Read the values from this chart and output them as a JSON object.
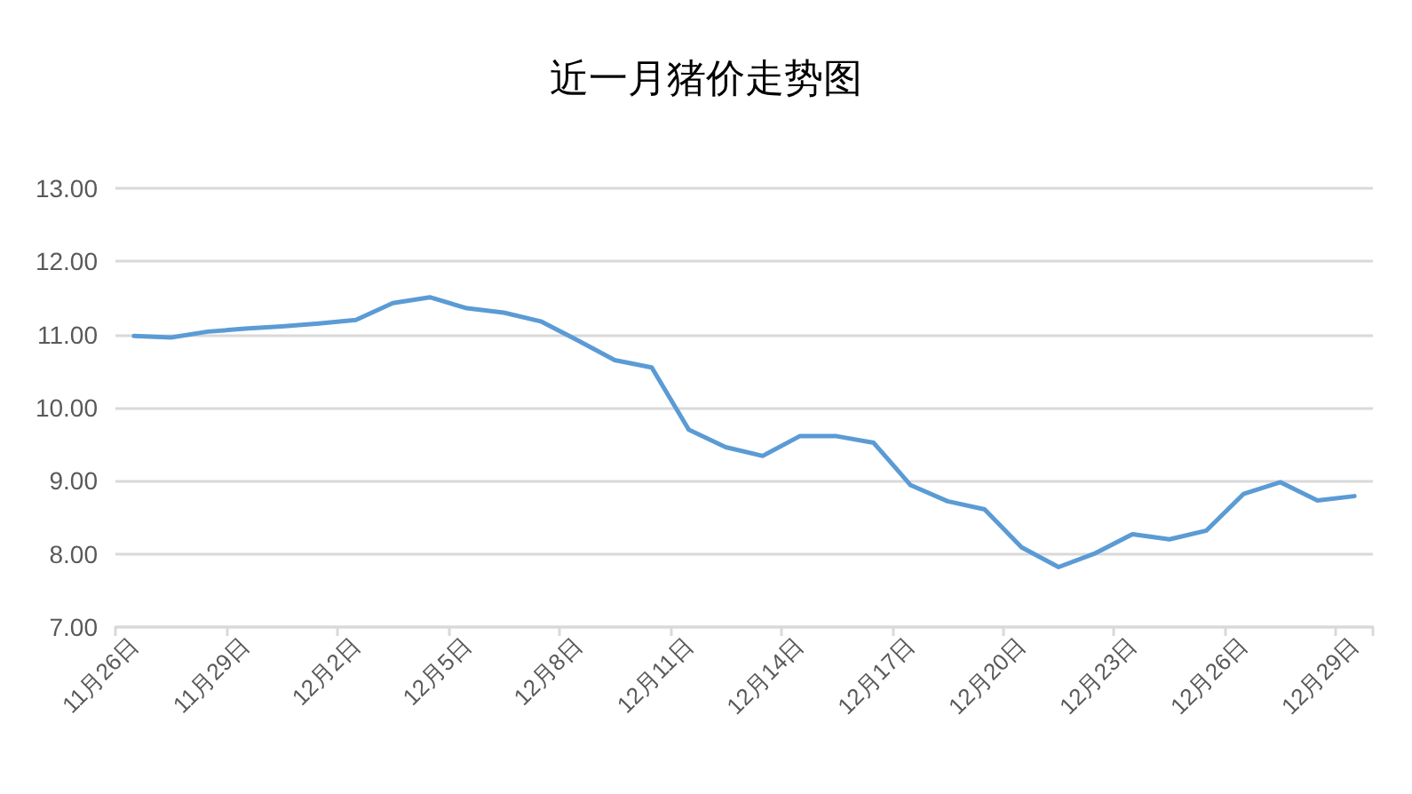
{
  "chart_data": {
    "type": "line",
    "title": "近一月猪价走势图",
    "categories": [
      "11月26日",
      null,
      null,
      "11月29日",
      null,
      null,
      "12月2日",
      null,
      null,
      "12月5日",
      null,
      null,
      "12月8日",
      null,
      null,
      "12月11日",
      null,
      null,
      "12月14日",
      null,
      null,
      "12月17日",
      null,
      null,
      "12月20日",
      null,
      null,
      "12月23日",
      null,
      null,
      "12月26日",
      null,
      null,
      "12月29日"
    ],
    "values": [
      10.98,
      10.96,
      11.04,
      11.08,
      11.11,
      11.15,
      11.2,
      11.43,
      11.51,
      11.36,
      11.3,
      11.18,
      10.92,
      10.65,
      10.55,
      9.7,
      9.46,
      9.34,
      9.61,
      9.61,
      9.52,
      8.94,
      8.72,
      8.61,
      8.09,
      7.82,
      8.01,
      8.27,
      8.2,
      8.32,
      8.82,
      8.98,
      8.73,
      8.79
    ],
    "color": "#5b9bd5",
    "ylim": [
      7,
      13
    ],
    "yticks": [
      {
        "value": 7,
        "label": "7.00"
      },
      {
        "value": 8,
        "label": "8.00"
      },
      {
        "value": 9,
        "label": "9.00"
      },
      {
        "value": 10,
        "label": "10.00"
      },
      {
        "value": 11,
        "label": "11.00"
      },
      {
        "value": 12,
        "label": "12.00"
      },
      {
        "value": 13,
        "label": "13.00"
      }
    ],
    "grid": "y",
    "marker": "none",
    "line_style": "solid"
  }
}
